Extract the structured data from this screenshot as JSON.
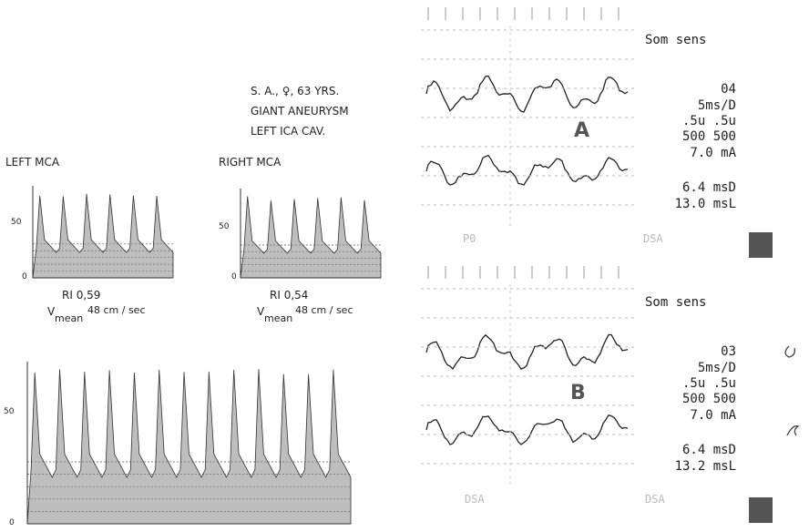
{
  "patient": {
    "line1": "S. A., ♀, 63 YRS.",
    "line2": "GIANT ANEURYSM",
    "line3": "LEFT ICA CAV."
  },
  "doppler": {
    "left": {
      "title": "LEFT MCA",
      "y_top": "50",
      "y_zero": "0",
      "ri": "RI 0,59",
      "v": "V",
      "v_sub": "mean",
      "v_value": "48 cm / sec"
    },
    "right": {
      "title": "RIGHT MCA",
      "y_top": "50",
      "y_zero": "0",
      "ri": "RI 0,54",
      "v": "V",
      "v_sub": "mean",
      "v_value": "48 cm / sec"
    },
    "bottom": {
      "y_top": "50",
      "y_zero": "0"
    }
  },
  "sep": {
    "A": {
      "letter": "A",
      "title": "Som sens",
      "channel": "04",
      "sweep": "5ms/D",
      "sens": ".5u .5u",
      "filter": "500 500",
      "current": "7.0 mA",
      "msd": "6.4 msD",
      "msl": "13.0 msL",
      "foot_left": "P0",
      "foot_right": "DSA"
    },
    "B": {
      "letter": "B",
      "title": "Som sens",
      "channel": "03",
      "sweep": "5ms/D",
      "sens": ".5u .5u",
      "filter": "500 500",
      "current": "7.0 mA",
      "msd": "6.4 msD",
      "msl": "13.2 msL",
      "foot_left": "DSA",
      "foot_right": "DSA"
    }
  }
}
